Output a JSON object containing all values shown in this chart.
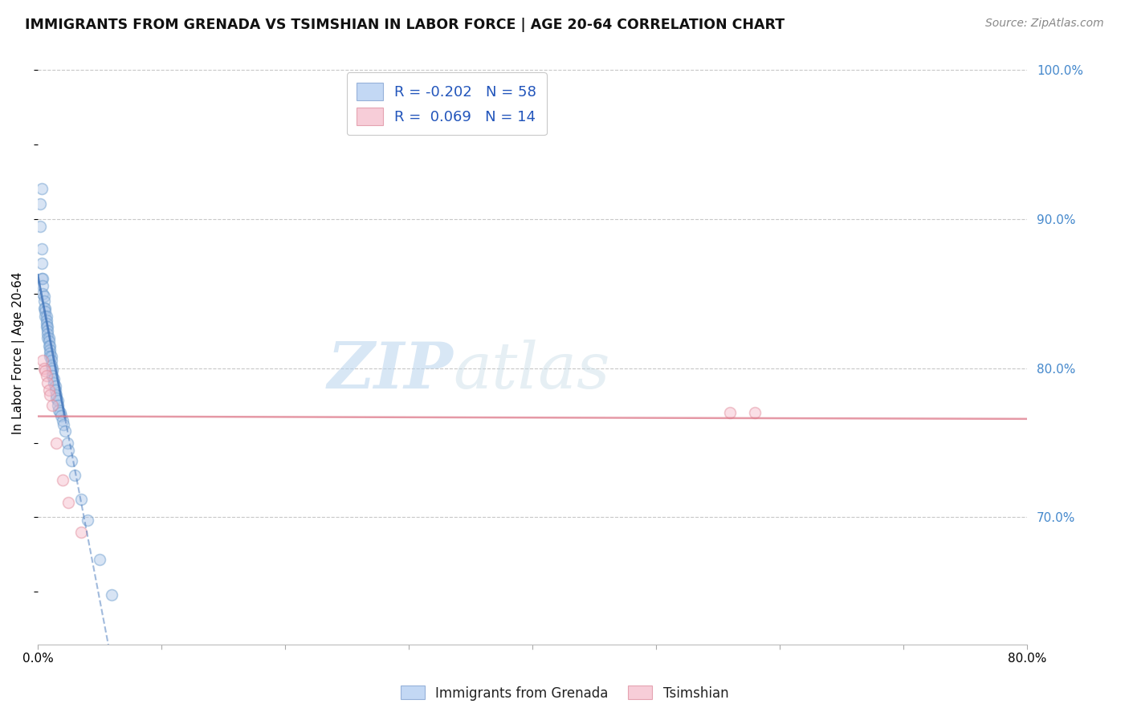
{
  "title": "IMMIGRANTS FROM GRENADA VS TSIMSHIAN IN LABOR FORCE | AGE 20-64 CORRELATION CHART",
  "source": "Source: ZipAtlas.com",
  "ylabel": "In Labor Force | Age 20-64",
  "xlim": [
    0.0,
    0.8
  ],
  "ylim": [
    0.615,
    1.005
  ],
  "yticks_right": [
    0.7,
    0.8,
    0.9,
    1.0
  ],
  "grid_color": "#c8c8c8",
  "background_color": "#ffffff",
  "blue_color": "#aac4e8",
  "pink_color": "#f4b8c8",
  "blue_edge_color": "#6699cc",
  "pink_edge_color": "#e08898",
  "blue_line_color": "#4477bb",
  "pink_line_color": "#dd7788",
  "legend_blue_label": "R = -0.202   N = 58",
  "legend_pink_label": "R =  0.069   N = 14",
  "scatter_blue_x": [
    0.002,
    0.002,
    0.003,
    0.003,
    0.003,
    0.004,
    0.004,
    0.004,
    0.005,
    0.005,
    0.005,
    0.006,
    0.006,
    0.006,
    0.007,
    0.007,
    0.007,
    0.007,
    0.008,
    0.008,
    0.008,
    0.008,
    0.009,
    0.009,
    0.009,
    0.01,
    0.01,
    0.01,
    0.01,
    0.011,
    0.011,
    0.011,
    0.012,
    0.012,
    0.012,
    0.013,
    0.013,
    0.014,
    0.014,
    0.015,
    0.015,
    0.016,
    0.016,
    0.017,
    0.018,
    0.019,
    0.02,
    0.021,
    0.022,
    0.024,
    0.025,
    0.027,
    0.03,
    0.035,
    0.04,
    0.05,
    0.06,
    0.003
  ],
  "scatter_blue_y": [
    0.91,
    0.895,
    0.88,
    0.87,
    0.86,
    0.86,
    0.855,
    0.85,
    0.848,
    0.845,
    0.84,
    0.84,
    0.838,
    0.835,
    0.835,
    0.832,
    0.83,
    0.828,
    0.828,
    0.825,
    0.823,
    0.82,
    0.82,
    0.818,
    0.815,
    0.815,
    0.812,
    0.81,
    0.808,
    0.808,
    0.805,
    0.802,
    0.8,
    0.798,
    0.795,
    0.793,
    0.79,
    0.788,
    0.785,
    0.782,
    0.78,
    0.778,
    0.775,
    0.772,
    0.77,
    0.768,
    0.765,
    0.762,
    0.758,
    0.75,
    0.745,
    0.738,
    0.728,
    0.712,
    0.698,
    0.672,
    0.648,
    0.92
  ],
  "scatter_pink_x": [
    0.004,
    0.005,
    0.006,
    0.007,
    0.008,
    0.009,
    0.01,
    0.012,
    0.015,
    0.02,
    0.025,
    0.035,
    0.56,
    0.58
  ],
  "scatter_pink_y": [
    0.805,
    0.8,
    0.798,
    0.795,
    0.79,
    0.785,
    0.782,
    0.775,
    0.75,
    0.725,
    0.71,
    0.69,
    0.77,
    0.77
  ],
  "bottom_legend_labels": [
    "Immigrants from Grenada",
    "Tsimshian"
  ],
  "watermark_zip": "ZIP",
  "watermark_atlas": "atlas",
  "marker_size": 100,
  "marker_alpha": 0.45
}
